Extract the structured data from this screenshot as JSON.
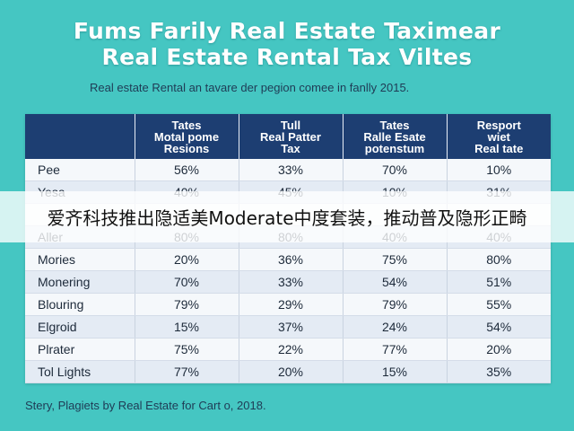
{
  "title": {
    "line1": "Fums Farily Real Estate Taximear",
    "line2": "Real Estate Rental Tax Viltes"
  },
  "subtitle": "Real estate Rental an tavare der pegion comee in fanlly 2015.",
  "table": {
    "headers": [
      "",
      "Tates\nMotal pome\nResions",
      "Tull\nReal Patter\nTax",
      "Tates\nRalle Esate\npotenstum",
      "Resport\nwiet\nReal tate"
    ],
    "rows": [
      {
        "name": "Pee",
        "values": [
          "56%",
          "33%",
          "70%",
          "10%"
        ]
      },
      {
        "name": "Yesa",
        "values": [
          "40%",
          "45%",
          "10%",
          "31%"
        ]
      },
      {
        "name": "",
        "values": [
          "",
          "",
          "",
          ""
        ]
      },
      {
        "name": "Aller",
        "values": [
          "80%",
          "80%",
          "40%",
          "40%"
        ]
      },
      {
        "name": "Mories",
        "values": [
          "20%",
          "36%",
          "75%",
          "80%"
        ]
      },
      {
        "name": "Monering",
        "values": [
          "70%",
          "33%",
          "54%",
          "51%"
        ]
      },
      {
        "name": "Blouring",
        "values": [
          "79%",
          "29%",
          "79%",
          "55%"
        ]
      },
      {
        "name": "Elgroid",
        "values": [
          "15%",
          "37%",
          "24%",
          "54%"
        ]
      },
      {
        "name": "Plrater",
        "values": [
          "75%",
          "22%",
          "77%",
          "20%"
        ]
      },
      {
        "name": "Tol Lights",
        "values": [
          "77%",
          "20%",
          "15%",
          "35%"
        ]
      }
    ]
  },
  "footer_note": "Stery, Plagiets by Real Estate for Cart o, 2018.",
  "caption": "爱齐科技推出隐适美Moderate中度套装，推动普及隐形正畸",
  "colors": {
    "background": "#45c6c2",
    "header_fill": "#1d3e72",
    "row_light": "#f5f8fb",
    "row_dark": "#e4ebf4"
  }
}
